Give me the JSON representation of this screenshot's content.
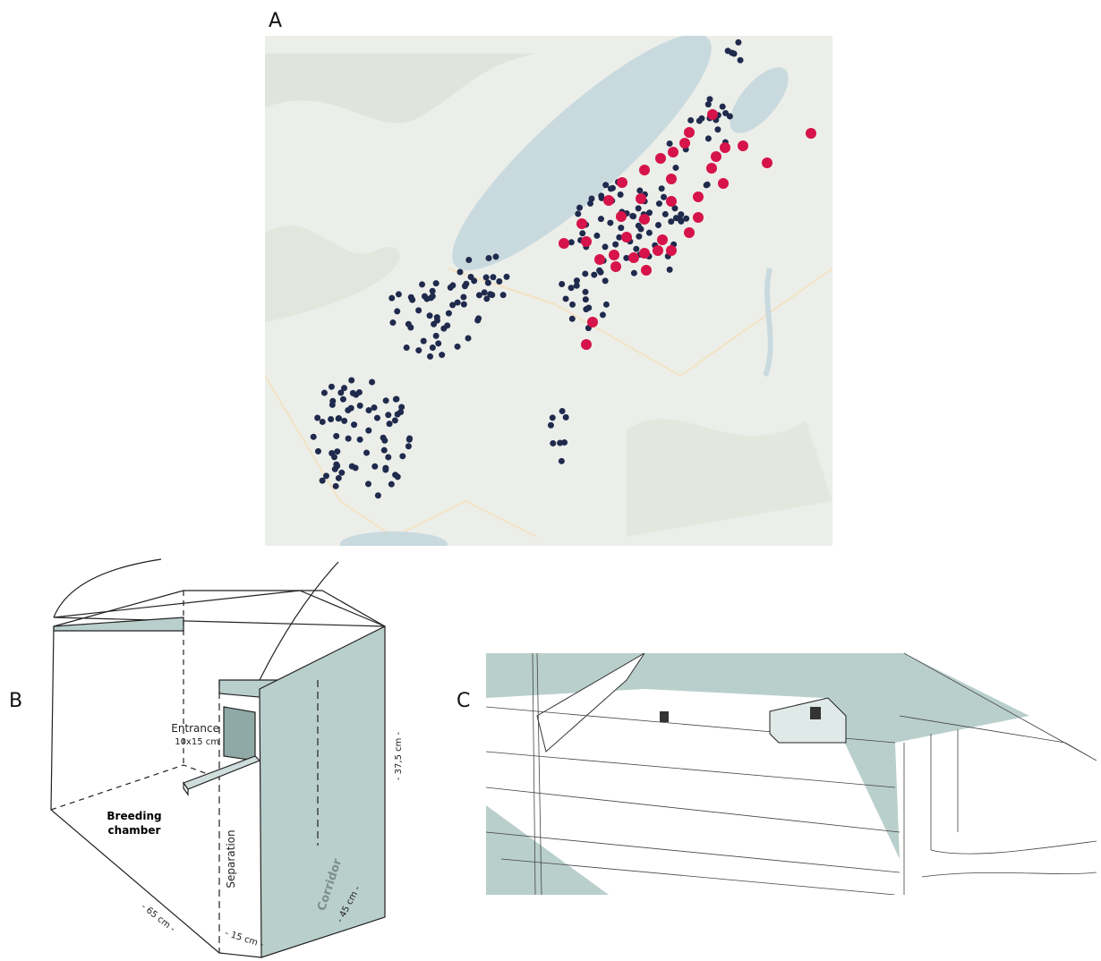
{
  "panels": {
    "a": {
      "label": "A"
    },
    "b": {
      "label": "B",
      "entrance": "Entrance",
      "entrance_size": "10x15 cm",
      "breeding_chamber": [
        "Breeding",
        "chamber"
      ],
      "separation": "Separation",
      "corridor": "Corridor",
      "dim_length": "- 65 cm -",
      "dim_depth": "- 45 cm -",
      "dim_corridor": "- 15 cm -",
      "dim_height": "- 37,5 cm -"
    },
    "c": {
      "label": "C"
    }
  }
}
